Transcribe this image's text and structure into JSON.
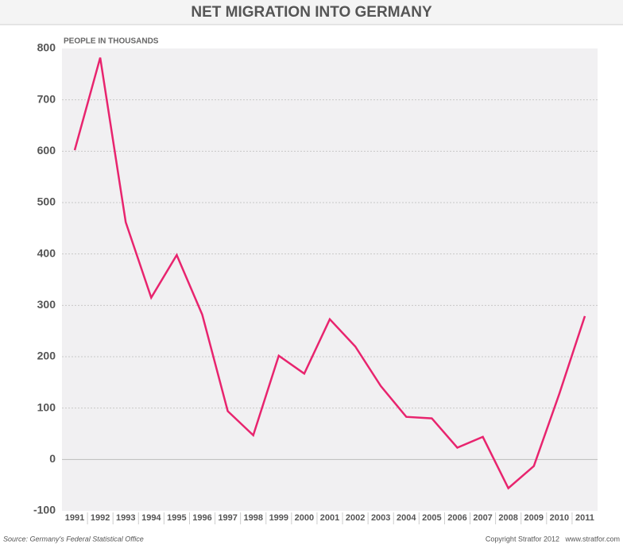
{
  "chart_data": {
    "type": "line",
    "title": "NET MIGRATION INTO GERMANY",
    "y_label": "PEOPLE IN THOUSANDS",
    "categories": [
      "1991",
      "1992",
      "1993",
      "1994",
      "1995",
      "1996",
      "1997",
      "1998",
      "1999",
      "2000",
      "2001",
      "2002",
      "2003",
      "2004",
      "2005",
      "2006",
      "2007",
      "2008",
      "2009",
      "2010",
      "2011"
    ],
    "series": [
      {
        "name": "Net migration",
        "color": "#e8246e",
        "values": [
          602,
          782,
          462,
          315,
          398,
          282,
          94,
          47,
          202,
          167,
          273,
          220,
          143,
          83,
          80,
          23,
          44,
          -56,
          -13,
          128,
          279
        ]
      }
    ],
    "ylim": [
      -100,
      800
    ],
    "yticks": [
      -100,
      0,
      100,
      200,
      300,
      400,
      500,
      600,
      700,
      800
    ],
    "grid": true,
    "source": "Source: Germany's Federal Statistical Office",
    "copyright": "Copyright Stratfor 2012   www.stratfor.com"
  }
}
